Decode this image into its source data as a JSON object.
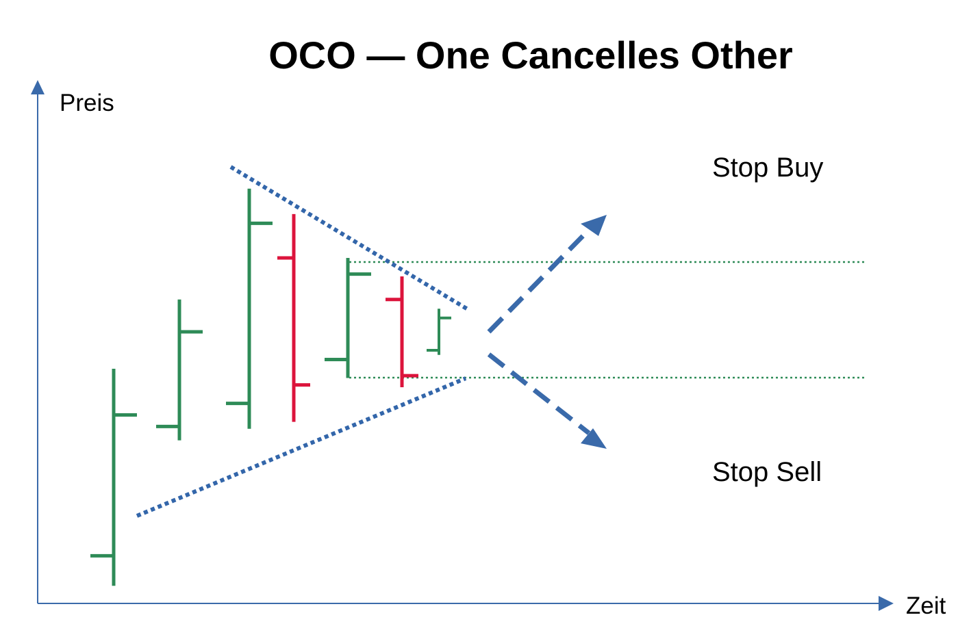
{
  "title": "OCO —  One Cancelles Other",
  "axes": {
    "y_label": "Preis",
    "x_label": "Zeit"
  },
  "labels": {
    "stop_buy": "Stop Buy",
    "stop_sell": "Stop Sell"
  },
  "colors": {
    "up_bar": "#2e8b57",
    "down_bar": "#dc143c",
    "trendline": "#3366aa",
    "arrow": "#3a6aaa",
    "axis": "#3a6aaa",
    "level_line": "#2e8b57"
  },
  "bars": [
    {
      "direction": "up",
      "low": 0.5,
      "high": 5.2,
      "open": 1.15,
      "close": 4.2
    },
    {
      "direction": "up",
      "low": 3.65,
      "high": 6.7,
      "open": 3.95,
      "close": 6.0
    },
    {
      "direction": "up",
      "low": 3.9,
      "high": 9.1,
      "open": 4.45,
      "close": 8.35
    },
    {
      "direction": "down",
      "low": 4.05,
      "high": 8.55,
      "open": 7.6,
      "close": 4.85
    },
    {
      "direction": "up",
      "low": 5.0,
      "high": 7.6,
      "open": 5.4,
      "close": 7.25
    },
    {
      "direction": "down",
      "low": 4.8,
      "high": 7.2,
      "open": 6.7,
      "close": 5.05
    },
    {
      "direction": "up",
      "low": 5.5,
      "high": 6.5,
      "open": 5.6,
      "close": 6.3
    }
  ]
}
